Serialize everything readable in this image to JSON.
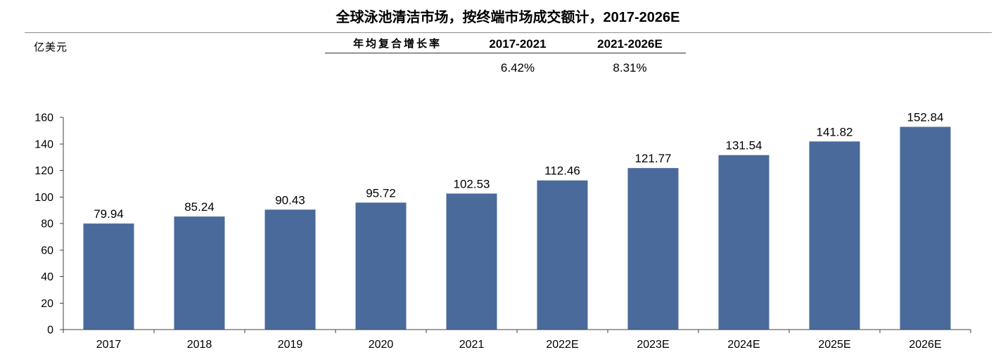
{
  "chart_data": {
    "type": "bar",
    "title": "全球泳池清洁市场，按终端市场成交额计，2017-2026E",
    "ylabel": "亿美元",
    "categories": [
      "2017",
      "2018",
      "2019",
      "2020",
      "2021",
      "2022E",
      "2023E",
      "2024E",
      "2025E",
      "2026E"
    ],
    "values": [
      79.94,
      85.24,
      90.43,
      95.72,
      102.53,
      112.46,
      121.77,
      131.54,
      141.82,
      152.84
    ],
    "ylim": [
      0,
      160
    ],
    "yticks": [
      0,
      20,
      40,
      60,
      80,
      100,
      120,
      140,
      160
    ],
    "grid": false,
    "legend": "none",
    "bar_color": "#4a6a9c"
  },
  "cagr_table": {
    "header": "年均复合增长率",
    "periods": [
      "2017-2021",
      "2021-2026E"
    ],
    "values": [
      "6.42%",
      "8.31%"
    ]
  }
}
